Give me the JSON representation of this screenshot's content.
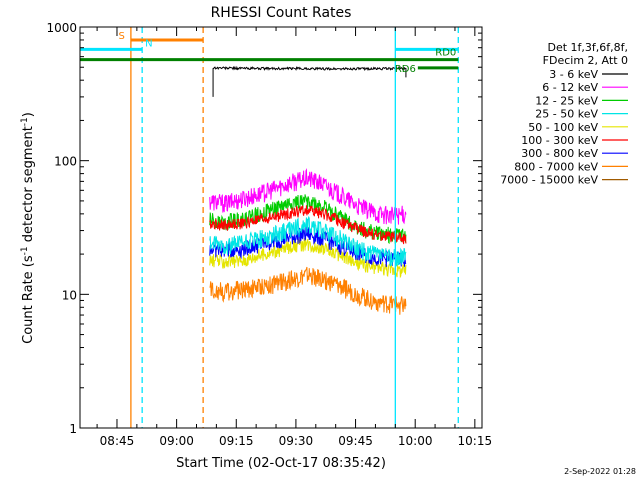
{
  "chart_data": {
    "type": "line",
    "title": "RHESSI Count Rates",
    "xlabel": "Start Time (02-Oct-17 08:35:42)",
    "ylabel_parts": [
      "Count Rate (s",
      "-1",
      " detector segment",
      "-1",
      ")"
    ],
    "yscale": "log",
    "ylim": [
      1,
      1000
    ],
    "xlim": [
      "08:35:42",
      "10:16:48"
    ],
    "x_ticks": [
      "08:45",
      "09:00",
      "09:15",
      "09:30",
      "09:45",
      "10:00",
      "10:15"
    ],
    "y_ticks": [
      "1",
      "10",
      "100",
      "1000"
    ],
    "legend_header": [
      "Det 1f,3f,6f,8f,",
      "FDecim 2, Att 0"
    ],
    "legend_position": "right",
    "series": [
      {
        "name": "3 - 6 keV",
        "color": "#000000",
        "values": [
          495,
          492,
          490,
          488,
          489,
          487,
          486,
          487,
          488,
          490
        ]
      },
      {
        "name": "6 - 12 keV",
        "color": "#ff00ff",
        "values": [
          50,
          48,
          52,
          56,
          62,
          69,
          74,
          66,
          55,
          46,
          41,
          39,
          40
        ]
      },
      {
        "name": "12 - 25 keV",
        "color": "#00cc00",
        "values": [
          36,
          35,
          37,
          40,
          44,
          48,
          50,
          45,
          38,
          32,
          29,
          28,
          27
        ]
      },
      {
        "name": "25 - 50 keV",
        "color": "#00e5e5",
        "values": [
          24,
          23,
          24,
          26,
          28,
          31,
          33,
          30,
          26,
          22,
          20,
          19,
          19
        ]
      },
      {
        "name": "50 - 100 keV",
        "color": "#e5e500",
        "values": [
          18,
          17.5,
          18,
          19.5,
          21,
          23,
          24,
          22,
          19.5,
          17,
          16,
          15.5,
          15
        ]
      },
      {
        "name": "100 - 300 keV",
        "color": "#ff0000",
        "values": [
          34,
          33,
          34,
          36,
          38,
          41,
          43,
          40,
          35,
          31,
          28,
          27,
          26
        ]
      },
      {
        "name": "300 - 800 keV",
        "color": "#0000ff",
        "values": [
          22,
          21.5,
          22,
          23.5,
          25,
          27,
          28.5,
          26,
          23,
          20.5,
          19,
          18.5,
          18
        ]
      },
      {
        "name": "800 - 7000 keV",
        "color": "#ff8000",
        "values": [
          11,
          10.5,
          11,
          11.5,
          12,
          13,
          14,
          13,
          11.5,
          10,
          9,
          8.5,
          8.3
        ]
      },
      {
        "name": "7000 - 15000 keV",
        "color": "#a05a00",
        "values": []
      }
    ],
    "data_start": "09:08:20",
    "data_end": "09:57:40",
    "black_start": "09:09:10",
    "annotations": [
      {
        "label": "S",
        "color": "#ff8000",
        "time": "08:48:30",
        "style": "solid",
        "band_from": "08:48:30",
        "band_to": "09:06:40",
        "level": 800
      },
      {
        "label": "",
        "color": "#ff8000",
        "time": "09:06:40",
        "style": "dashed"
      },
      {
        "label": "N",
        "color": "#00e5ff",
        "time": "08:51:20",
        "style": "dashed",
        "band_from": "08:35:42",
        "band_to": "08:51:20",
        "level": 680
      },
      {
        "label": "",
        "color": "#00e5ff",
        "time": "09:55:00",
        "style": "solid",
        "band_from": "09:55:00",
        "band_to": "10:10:50",
        "level": 680
      },
      {
        "label": "",
        "color": "#00e5ff",
        "time": "10:10:50",
        "style": "dashed"
      },
      {
        "label": "RD0",
        "color": "#008000",
        "level": 570,
        "band_from": "08:35:42",
        "band_to": "10:10:50"
      },
      {
        "label": "RD6",
        "color": "#008000",
        "level": 495,
        "band_from": "10:00:40",
        "band_to": "10:10:50"
      }
    ]
  },
  "footer": {
    "timestamp": "2-Sep-2022 01:28"
  }
}
